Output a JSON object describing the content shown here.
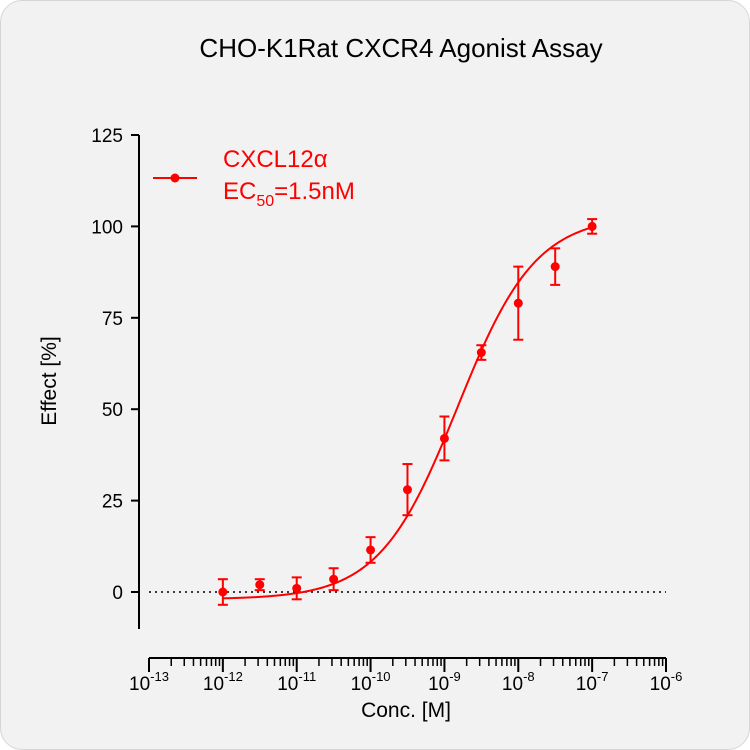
{
  "chart_data": {
    "type": "scatter",
    "title": "CHO-K1Rat CXCR4  Agonist Assay",
    "xlabel": "Conc. [M]",
    "ylabel": "Effect  [%]",
    "x_scale": "log10",
    "xlim": [
      1e-13,
      1e-06
    ],
    "ylim": [
      -10,
      125
    ],
    "y_ticks": [
      0,
      25,
      50,
      75,
      100,
      125
    ],
    "x_ticks": [
      {
        "value": 1e-13,
        "base": "10",
        "exp": "-13"
      },
      {
        "value": 1e-12,
        "base": "10",
        "exp": "-12"
      },
      {
        "value": 1e-11,
        "base": "10",
        "exp": "-11"
      },
      {
        "value": 1e-10,
        "base": "10",
        "exp": "-10"
      },
      {
        "value": 1e-09,
        "base": "10",
        "exp": "-9"
      },
      {
        "value": 1e-08,
        "base": "10",
        "exp": "-8"
      },
      {
        "value": 1e-07,
        "base": "10",
        "exp": "-7"
      },
      {
        "value": 1e-06,
        "base": "10",
        "exp": "-6"
      }
    ],
    "baseline": 0,
    "legend_position": "top-left",
    "series": [
      {
        "name": "CXCL12α",
        "color": "#ff0000",
        "points": [
          {
            "x": 1e-12,
            "y": 0.0,
            "err": 3.5
          },
          {
            "x": 3.16e-12,
            "y": 2.0,
            "err": 1.5
          },
          {
            "x": 1e-11,
            "y": 1.0,
            "err": 3.0
          },
          {
            "x": 3.16e-11,
            "y": 3.5,
            "err": 3.0
          },
          {
            "x": 1e-10,
            "y": 11.5,
            "err": 3.5
          },
          {
            "x": 3.16e-10,
            "y": 28.0,
            "err": 7.0
          },
          {
            "x": 1e-09,
            "y": 42.0,
            "err": 6.0
          },
          {
            "x": 3.16e-09,
            "y": 65.5,
            "err": 2.0
          },
          {
            "x": 1e-08,
            "y": 79.0,
            "err": 10.0
          },
          {
            "x": 3.16e-08,
            "y": 89.0,
            "err": 5.0
          },
          {
            "x": 1e-07,
            "y": 100.0,
            "err": 2.0
          }
        ],
        "fit": {
          "bottom": -2,
          "top": 103,
          "ec50": 1.5e-09,
          "hill": 0.82,
          "from": 1e-12,
          "to": 1e-07
        }
      }
    ],
    "legend": {
      "label": "CXCL12α",
      "ec50_prefix": "EC",
      "ec50_subscript": "50",
      "ec50_value": "=1.5nM"
    }
  }
}
